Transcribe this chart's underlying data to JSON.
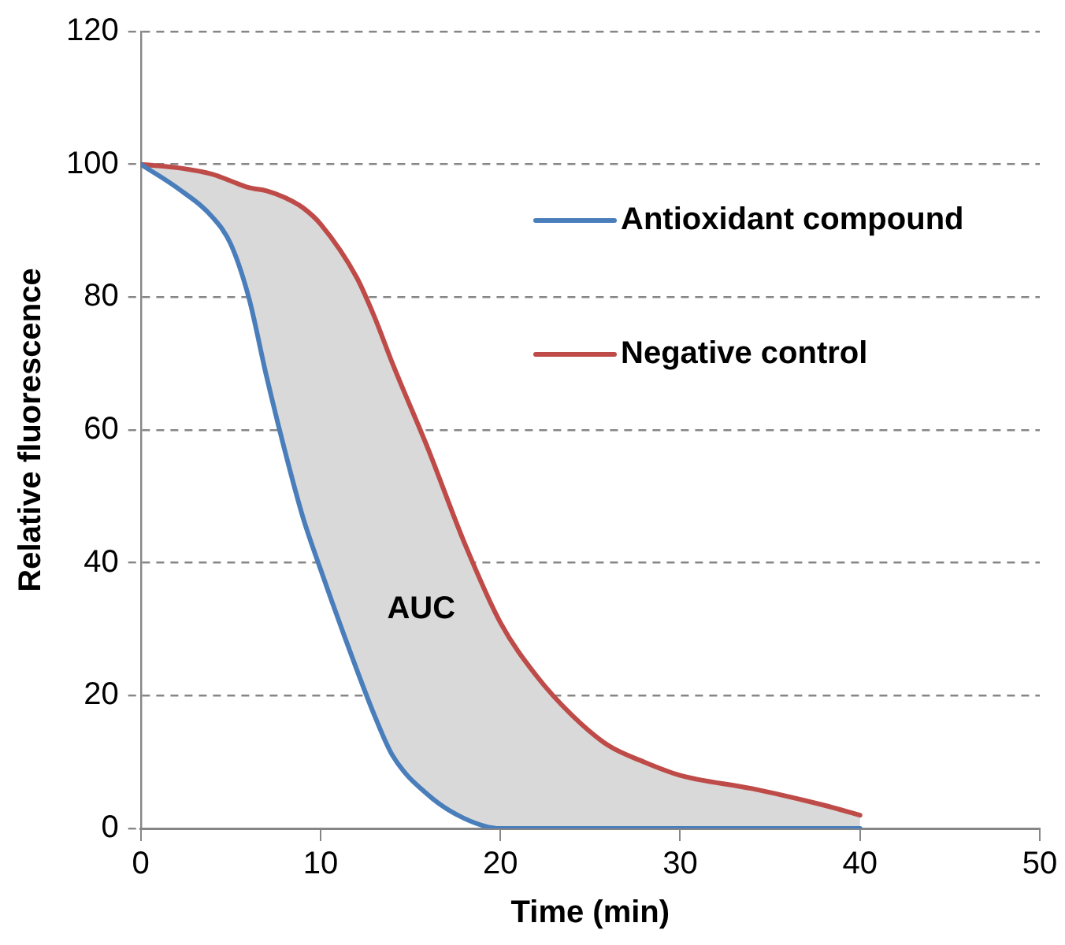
{
  "chart_data": {
    "type": "line",
    "xlabel": "Time (min)",
    "ylabel": "Relative fluorescence",
    "xlim": [
      0,
      50
    ],
    "xticks": [
      0,
      10,
      20,
      30,
      40,
      50
    ],
    "ylim": [
      0,
      120
    ],
    "yticks": [
      0,
      20,
      40,
      60,
      80,
      100,
      120
    ],
    "grid": "y",
    "legend": "top right",
    "marker": "none",
    "line_style": "solid",
    "annotations": [
      "AUC"
    ],
    "series": [
      {
        "name": "Antioxidant compound",
        "color": "#4a7ebb",
        "x": [
          0,
          2,
          4,
          5,
          6,
          7,
          8,
          9,
          10,
          12,
          13,
          14,
          16,
          18,
          20,
          22,
          24,
          26,
          28,
          30,
          34,
          38,
          40
        ],
        "values": [
          100,
          96.5,
          92,
          88,
          80,
          68,
          57,
          47,
          39,
          24,
          17,
          11,
          5,
          1.5,
          0,
          0,
          0,
          0,
          0,
          0,
          0,
          0,
          0
        ]
      },
      {
        "name": "Negative control",
        "color": "#be4b48",
        "x": [
          0,
          2,
          4,
          5,
          6,
          7,
          8,
          9,
          10,
          12,
          13,
          14,
          16,
          18,
          20,
          22,
          24,
          26,
          28,
          30,
          34,
          38,
          40
        ],
        "values": [
          100,
          99.5,
          98.5,
          97.5,
          96.5,
          96,
          95,
          93.5,
          91,
          83,
          77,
          70,
          57,
          43,
          31,
          23,
          17,
          12.5,
          10,
          8,
          6,
          3.5,
          2
        ],
        "lower": [
          100,
          96.5,
          92,
          88,
          80,
          68,
          57,
          47,
          39,
          24,
          17,
          11,
          5,
          1.5,
          0,
          0,
          0,
          0,
          0,
          0,
          0,
          0,
          0
        ],
        "upper": [
          100,
          99.5,
          98.5,
          97.5,
          96.5,
          96,
          95,
          93.5,
          91,
          83,
          77,
          70,
          57,
          43,
          31,
          23,
          17,
          12.5,
          10,
          8,
          6,
          3.5,
          2
        ]
      }
    ]
  }
}
